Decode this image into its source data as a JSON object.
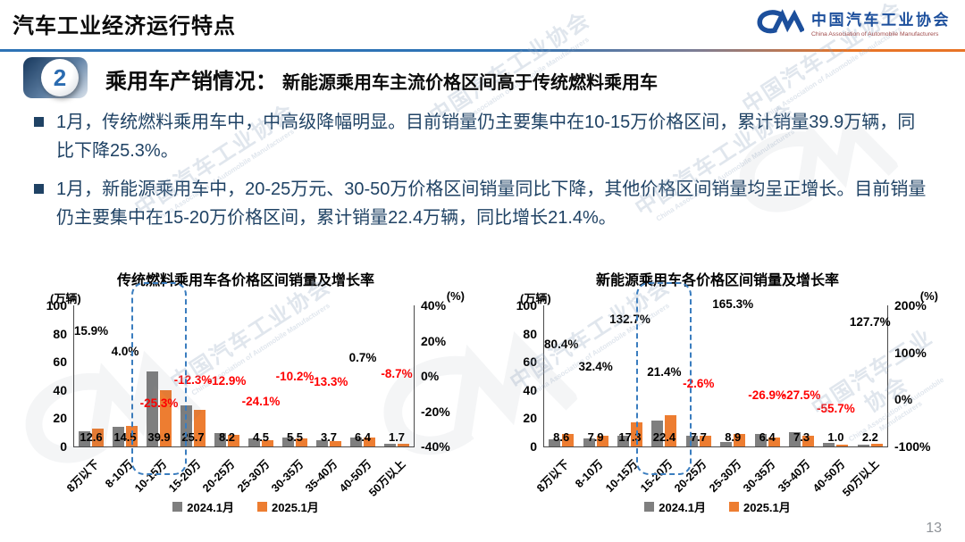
{
  "page": {
    "title": "汽车工业经济运行特点",
    "page_number": "13"
  },
  "logo": {
    "mark": "CM",
    "name_cn": "中国汽车工业协会",
    "name_en": "China Association of Automobile Manufacturers"
  },
  "section": {
    "number": "2",
    "heading": "乘用车产销情况：",
    "subheading": "新能源乘用车主流价格区间高于传统燃料乘用车"
  },
  "bullets": [
    "1月，传统燃料乘用车中，中高级降幅明显。目前销量仍主要集中在10-15万价格区间，累计销量39.9万辆，同比下降25.3%。",
    "1月，新能源乘用车中，20-25万元、30-50万价格区间销量同比下降，其他价格区间销量均呈正增长。目前销量仍主要集中在15-20万价格区间，累计销量22.4万辆，同比增长21.4%。"
  ],
  "colors": {
    "gray_series": "#7f7f7f",
    "orange_series": "#ed7d31",
    "negative": "#ff0000",
    "positive": "#000000",
    "highlight_border": "#3a7dbf",
    "accent_blue": "#2e73b5",
    "body_text": "#1f4264"
  },
  "chart_data": [
    {
      "type": "bar",
      "title": "传统燃料乘用车各价格区间销量及增长率",
      "unit_left": "(万辆)",
      "unit_right": "(%)",
      "y_left": {
        "ticks": [
          100,
          80,
          60,
          40,
          20,
          0
        ],
        "max": 100
      },
      "y_right": {
        "ticks": [
          "40%",
          "20%",
          "0%",
          "-20%",
          "-40%"
        ],
        "tick_values": [
          40,
          20,
          0,
          -20,
          -40
        ],
        "min": -40,
        "max": 40
      },
      "categories": [
        "8万以下",
        "8-10万",
        "10-15万",
        "15-20万",
        "20-25万",
        "25-30万",
        "30-35万",
        "35-40万",
        "40-50万",
        "50万以上"
      ],
      "series": [
        {
          "name": "2024.1月",
          "color": "#7f7f7f",
          "values": [
            10.9,
            13.9,
            53.4,
            29.3,
            9.4,
            5.9,
            6.1,
            4.3,
            6.4,
            1.9
          ]
        },
        {
          "name": "2025.1月",
          "color": "#ed7d31",
          "values": [
            12.6,
            14.5,
            39.9,
            25.7,
            8.2,
            4.5,
            5.5,
            3.7,
            6.4,
            1.7
          ]
        }
      ],
      "value_labels": [
        "12.6",
        "14.5",
        "39.9",
        "25.7",
        "8.2",
        "4.5",
        "5.5",
        "3.7",
        "6.4",
        "1.7"
      ],
      "growth": [
        15.9,
        4.0,
        -25.3,
        -12.3,
        -12.9,
        -24.1,
        -10.2,
        -13.3,
        0.7,
        -8.7
      ],
      "growth_labels": [
        "15.9%",
        "4.0%",
        "-25.3%",
        "-12.3%",
        "-12.9%",
        "-24.1%",
        "-10.2%",
        "-13.3%",
        "0.7%",
        "-8.7%"
      ],
      "highlight_index": 2,
      "legend": [
        "2024.1月",
        "2025.1月"
      ]
    },
    {
      "type": "bar",
      "title": "新能源乘用车各价格区间销量及增长率",
      "unit_left": "(万辆)",
      "unit_right": "(%)",
      "y_left": {
        "ticks": [
          100,
          80,
          60,
          40,
          20,
          0
        ],
        "max": 100
      },
      "y_right": {
        "ticks": [
          "200%",
          "100%",
          "0%",
          "-100%"
        ],
        "tick_values": [
          200,
          100,
          0,
          -100
        ],
        "min": -100,
        "max": 200
      },
      "categories": [
        "8万以下",
        "8-10万",
        "10-15万",
        "15-20万",
        "20-25万",
        "25-30万",
        "30-35万",
        "35-40万",
        "40-50万",
        "50万以上"
      ],
      "series": [
        {
          "name": "2024.1月",
          "color": "#7f7f7f",
          "values": [
            4.8,
            6.0,
            7.4,
            18.5,
            7.9,
            3.4,
            8.8,
            10.1,
            2.3,
            1.0
          ]
        },
        {
          "name": "2025.1月",
          "color": "#ed7d31",
          "values": [
            8.6,
            7.9,
            17.3,
            22.4,
            7.7,
            8.9,
            6.4,
            7.3,
            1.0,
            2.2
          ]
        }
      ],
      "value_labels": [
        "8.6",
        "7.9",
        "17.3",
        "22.4",
        "7.7",
        "8.9",
        "6.4",
        "7.3",
        "1.0",
        "2.2"
      ],
      "growth": [
        80.4,
        32.4,
        132.7,
        21.4,
        -2.6,
        165.3,
        -26.9,
        -27.5,
        -55.7,
        127.7
      ],
      "growth_labels": [
        "80.4%",
        "32.4%",
        "132.7%",
        "21.4%",
        "-2.6%",
        "165.3%",
        "-26.9%",
        "-27.5%",
        "-55.7%",
        "127.7%"
      ],
      "highlight_index": 3,
      "legend": [
        "2024.1月",
        "2025.1月"
      ]
    }
  ]
}
